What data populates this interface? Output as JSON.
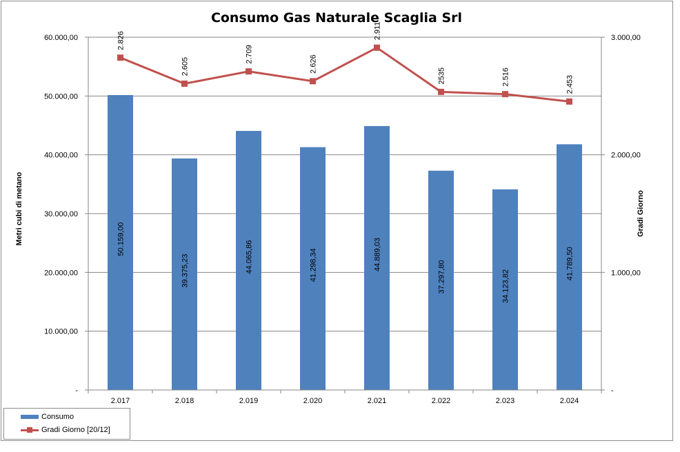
{
  "chart_data": {
    "type": "bar",
    "title": "Consumo Gas Naturale Scaglia Srl",
    "categories": [
      "2.017",
      "2.018",
      "2.019",
      "2.020",
      "2.021",
      "2.022",
      "2.023",
      "2.024"
    ],
    "series": [
      {
        "name": "Consumo",
        "type": "bar",
        "axis": "left",
        "color": "#4f81bd",
        "values": [
          50159.0,
          39375.23,
          44065.86,
          41298.34,
          44889.03,
          37297.8,
          34123.82,
          41789.5
        ],
        "labels": [
          "50.159,00",
          "39.375,23",
          "44.065,86",
          "41.298,34",
          "44.889,03",
          "37.297,80",
          "34.123,82",
          "41.789,50"
        ]
      },
      {
        "name": "Gradi Giorno [20/12]",
        "type": "line",
        "axis": "right",
        "color": "#c0504d",
        "values": [
          2826,
          2605,
          2709,
          2626,
          2911,
          2535,
          2516,
          2453
        ],
        "labels": [
          "2.826",
          "2.605",
          "2.709",
          "2.626",
          "2.911",
          "2535",
          "2.516",
          "2.453"
        ]
      }
    ],
    "ylabel": "Metri cubi di metano",
    "y2label": "Gradi Giorno",
    "ylim": [
      0,
      60000
    ],
    "y2lim": [
      0,
      3000
    ],
    "yticks": [
      "-",
      "10.000,00",
      "20.000,00",
      "30.000,00",
      "40.000,00",
      "50.000,00",
      "60.000,00"
    ],
    "y2ticks": [
      "-",
      "1.000,00",
      "2.000,00",
      "3.000,00"
    ],
    "grid": true,
    "legend_position": "bottom-left"
  }
}
